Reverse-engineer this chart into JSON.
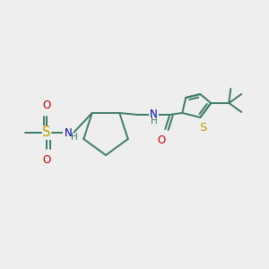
{
  "bg_color": "#eeeeee",
  "bond_color": "#3d7a6a",
  "bond_width": 1.4,
  "S_color": "#b8a000",
  "N_color": "#0000cc",
  "O_color": "#cc0000",
  "font_size": 8.5,
  "fig_size": [
    3.0,
    3.0
  ],
  "dpi": 100,
  "xlim": [
    0,
    300
  ],
  "ylim": [
    0,
    300
  ]
}
